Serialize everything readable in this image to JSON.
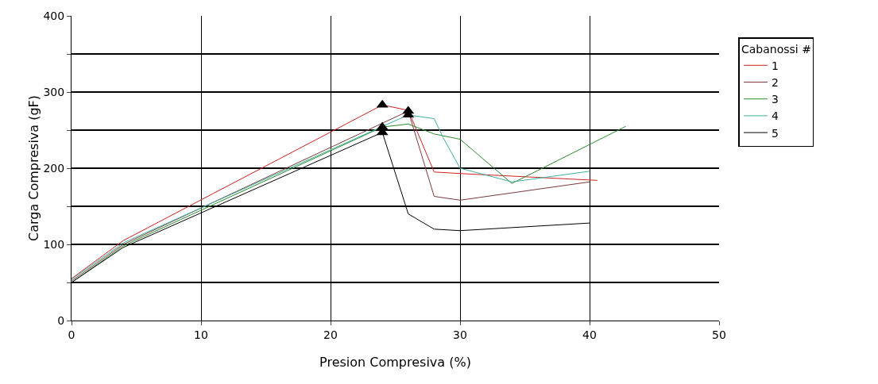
{
  "chart_data": {
    "type": "line",
    "xlabel": "Presion Compresiva (%)",
    "ylabel": "Carga Compresiva (gF)",
    "legend_title": "Cabanossi #",
    "legend": "right",
    "grid": true,
    "marker": "none",
    "line_style": "solid",
    "xlim": [
      0,
      50
    ],
    "xticks": [
      0,
      10,
      20,
      30,
      40,
      50
    ],
    "ylim": [
      0,
      400
    ],
    "yticks": [
      0,
      {
        "value": 50,
        "label": null
      },
      100,
      {
        "value": 150,
        "label": null
      },
      200,
      {
        "value": 250,
        "label": null
      },
      300,
      {
        "value": 350,
        "label": null
      },
      400
    ],
    "series": [
      {
        "name": "1",
        "color": "#cc2222",
        "x": [
          0,
          4,
          24,
          26,
          28,
          30,
          40.6
        ],
        "values": [
          55,
          105,
          283,
          276,
          195,
          193,
          184
        ]
      },
      {
        "name": "2",
        "color": "#7a3a3a",
        "x": [
          0,
          4,
          26,
          28,
          30,
          40
        ],
        "values": [
          52,
          100,
          275,
          163,
          158,
          182
        ]
      },
      {
        "name": "3",
        "color": "#2e8b2e",
        "x": [
          0,
          4,
          24,
          26,
          28,
          30,
          34,
          36,
          42.8
        ],
        "values": [
          50,
          98,
          254,
          258,
          245,
          238,
          180,
          197,
          255
        ]
      },
      {
        "name": "4",
        "color": "#40b0a0",
        "x": [
          0,
          4,
          26,
          28,
          28.7,
          30,
          34,
          40
        ],
        "values": [
          54,
          102,
          270,
          265,
          240,
          200,
          182,
          196
        ]
      },
      {
        "name": "5",
        "color": "#000000",
        "x": [
          0,
          4,
          24,
          26,
          28,
          30,
          40
        ],
        "values": [
          50,
          96,
          247,
          140,
          120,
          118,
          128
        ]
      },
      {
        "type": "scatter",
        "marker": "triangle",
        "color": "#000000",
        "x": [
          24,
          24,
          24,
          26,
          26
        ],
        "values": [
          283,
          254,
          247,
          275,
          270
        ]
      }
    ]
  }
}
